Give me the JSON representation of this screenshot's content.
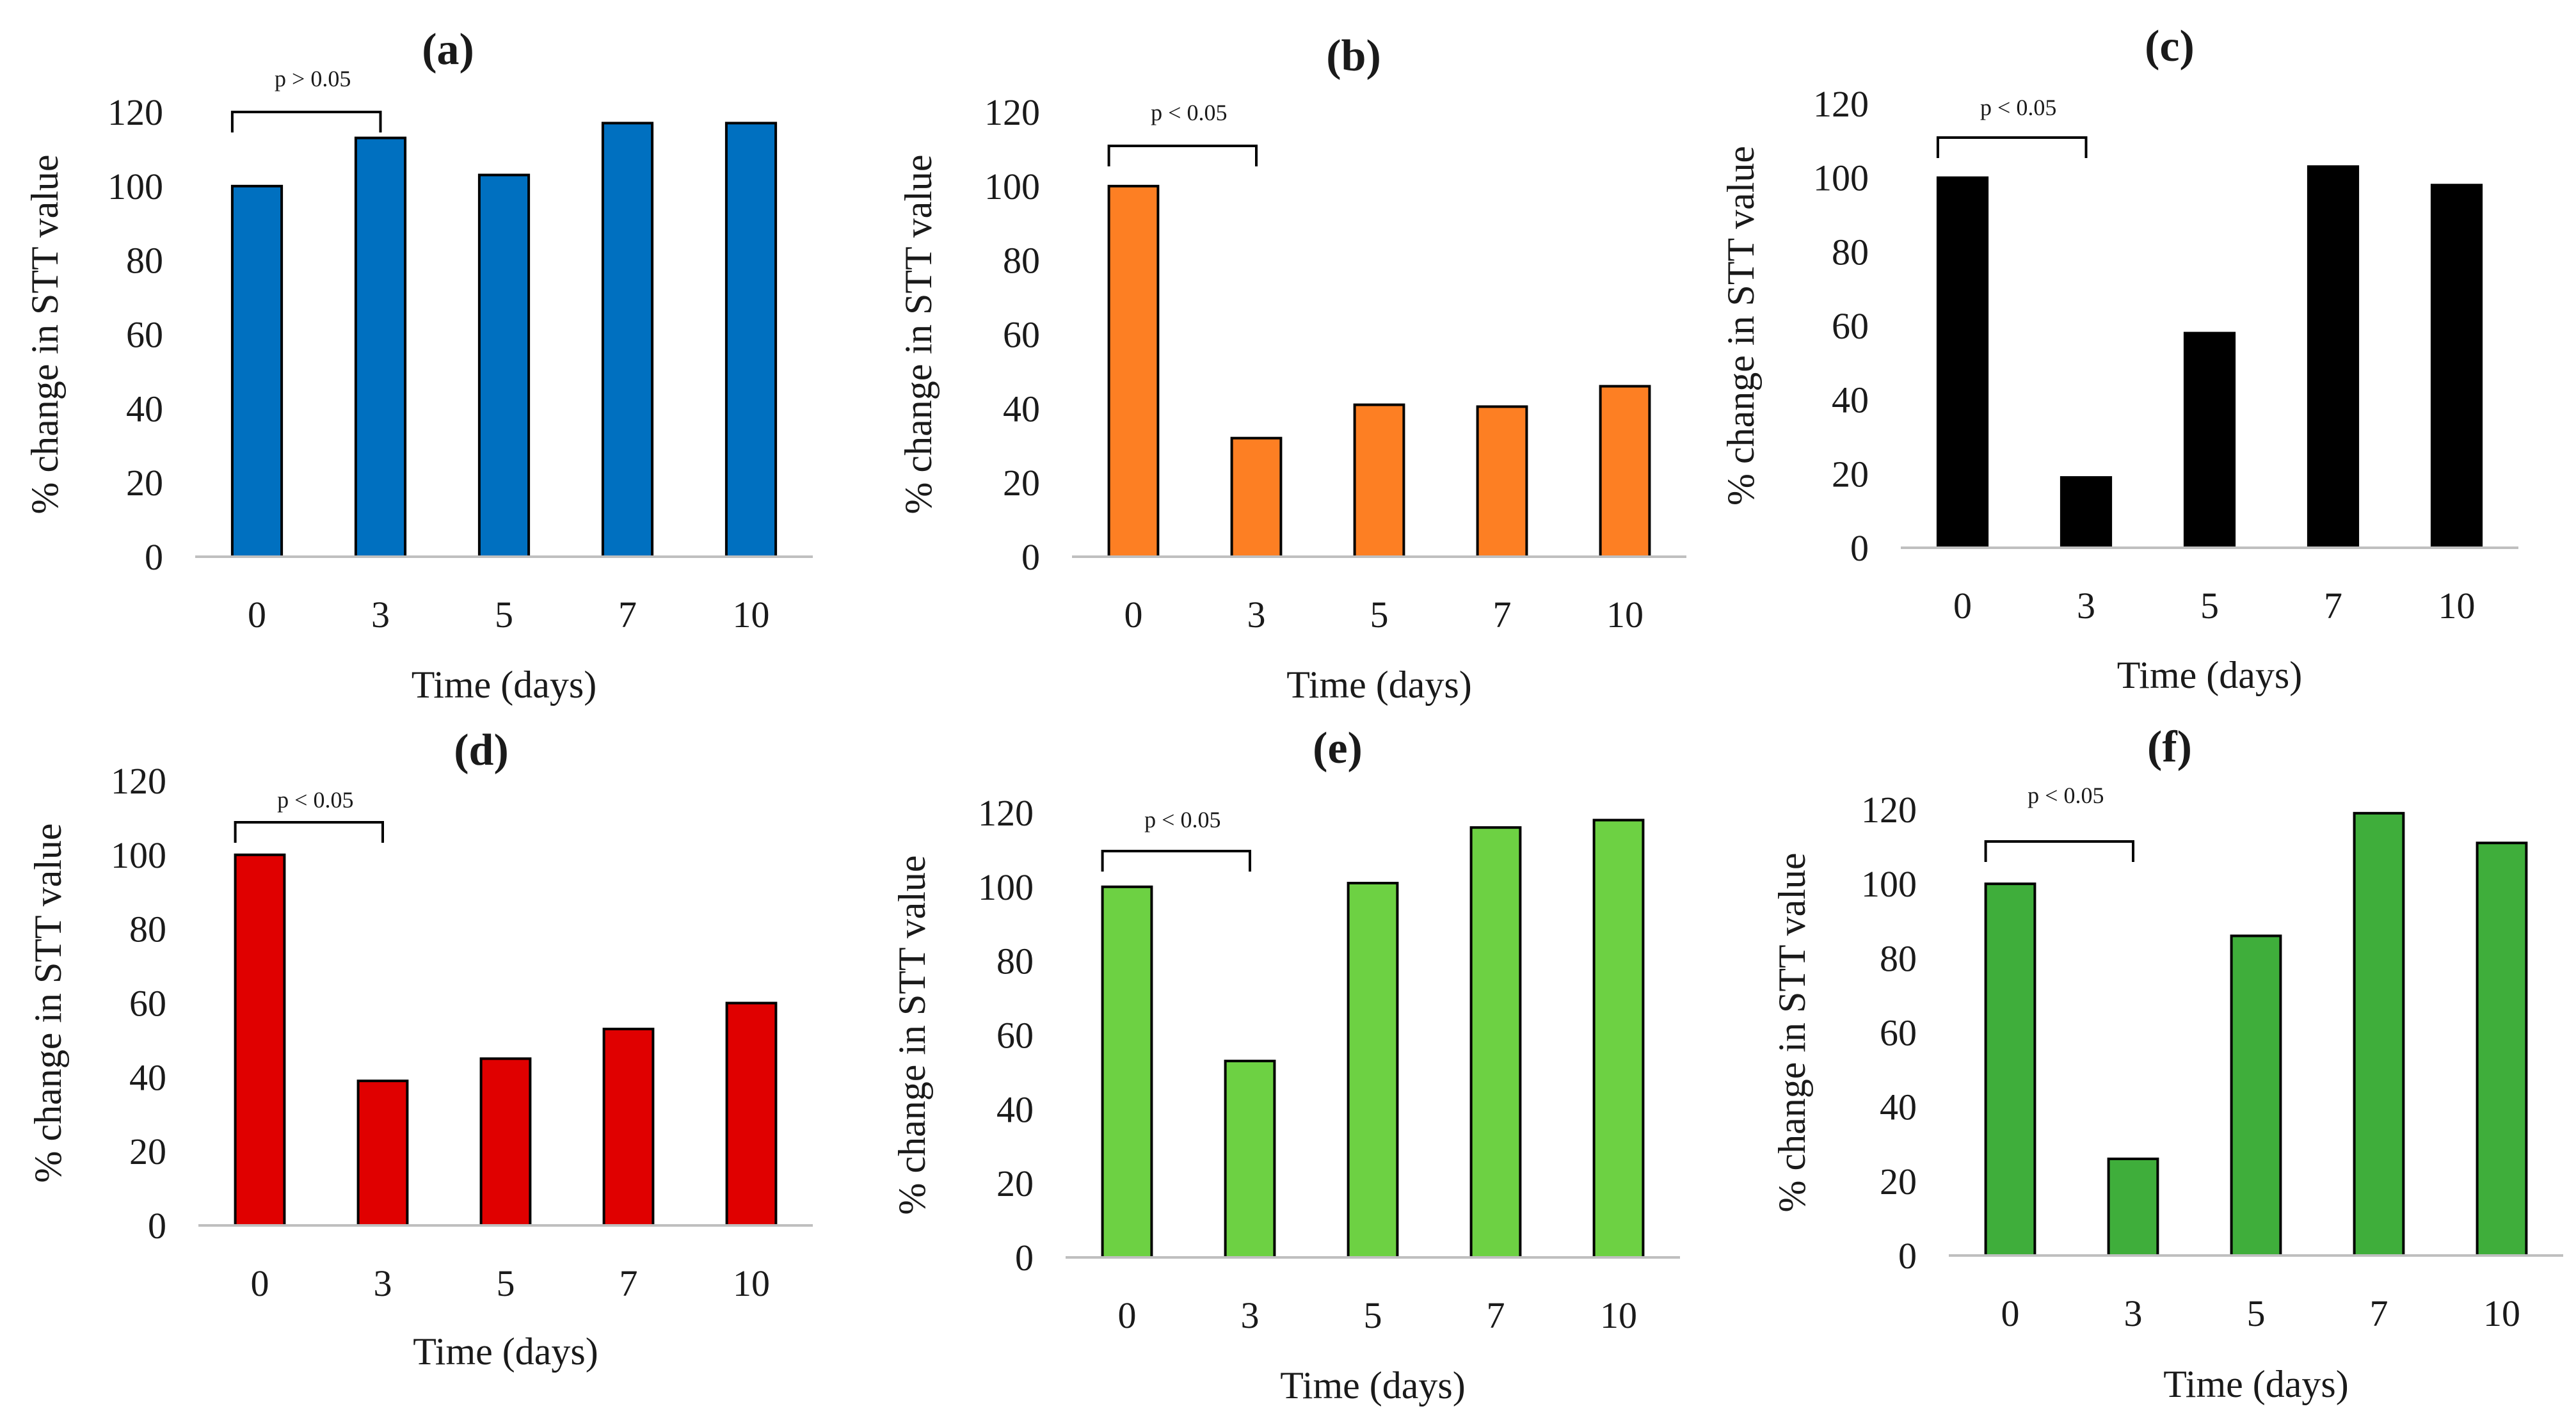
{
  "chart_data": [
    {
      "type": "bar",
      "title": "(a)",
      "xlabel": "Time (days)",
      "ylabel": "% change in STT value",
      "categories": [
        "0",
        "3",
        "5",
        "7",
        "10"
      ],
      "values": [
        100,
        113,
        103,
        117,
        117
      ],
      "ylim": [
        0,
        120
      ],
      "yticks": [
        "0",
        "20",
        "40",
        "60",
        "80",
        "100",
        "120"
      ],
      "annotation": "p > 0.05",
      "color": "#0070c0",
      "grid": false
    },
    {
      "type": "bar",
      "title": "(b)",
      "xlabel": "Time (days)",
      "ylabel": "% change in STT value",
      "categories": [
        "0",
        "3",
        "5",
        "7",
        "10"
      ],
      "values": [
        100,
        32,
        41,
        40.5,
        46
      ],
      "ylim": [
        0,
        120
      ],
      "yticks": [
        "0",
        "20",
        "40",
        "60",
        "80",
        "100",
        "120"
      ],
      "annotation": "p < 0.05",
      "color": "#fd7f23",
      "grid": false
    },
    {
      "type": "bar",
      "title": "(c)",
      "xlabel": "Time (days)",
      "ylabel": "% change in STT value",
      "categories": [
        "0",
        "3",
        "5",
        "7",
        "10"
      ],
      "values": [
        100,
        19,
        58,
        103,
        98
      ],
      "ylim": [
        0,
        120
      ],
      "yticks": [
        "0",
        "20",
        "40",
        "60",
        "80",
        "100",
        "120"
      ],
      "annotation": "p < 0.05",
      "color": "#000000",
      "grid": false
    },
    {
      "type": "bar",
      "title": "(d)",
      "xlabel": "Time (days)",
      "ylabel": "% change in STT value",
      "categories": [
        "0",
        "3",
        "5",
        "7",
        "10"
      ],
      "values": [
        100,
        39,
        45,
        53,
        60
      ],
      "ylim": [
        0,
        120
      ],
      "yticks": [
        "0",
        "20",
        "40",
        "60",
        "80",
        "100",
        "120"
      ],
      "annotation": "p < 0.05",
      "color": "#e00000",
      "grid": false
    },
    {
      "type": "bar",
      "title": "(e)",
      "xlabel": "Time (days)",
      "ylabel": "% change in STT value",
      "categories": [
        "0",
        "3",
        "5",
        "7",
        "10"
      ],
      "values": [
        100,
        53,
        101,
        116,
        118
      ],
      "ylim": [
        0,
        120
      ],
      "yticks": [
        "0",
        "20",
        "40",
        "60",
        "80",
        "100",
        "120"
      ],
      "annotation": "p < 0.05",
      "color": "#6dd143",
      "grid": false
    },
    {
      "type": "bar",
      "title": "(f)",
      "xlabel": "Time (days)",
      "ylabel": "% change in STT value",
      "categories": [
        "0",
        "3",
        "5",
        "7",
        "10"
      ],
      "values": [
        100,
        26,
        86,
        119,
        111
      ],
      "ylim": [
        0,
        120
      ],
      "yticks": [
        "0",
        "20",
        "40",
        "60",
        "80",
        "100",
        "120"
      ],
      "annotation": "p < 0.05",
      "color": "#3fae3b",
      "grid": false
    }
  ]
}
